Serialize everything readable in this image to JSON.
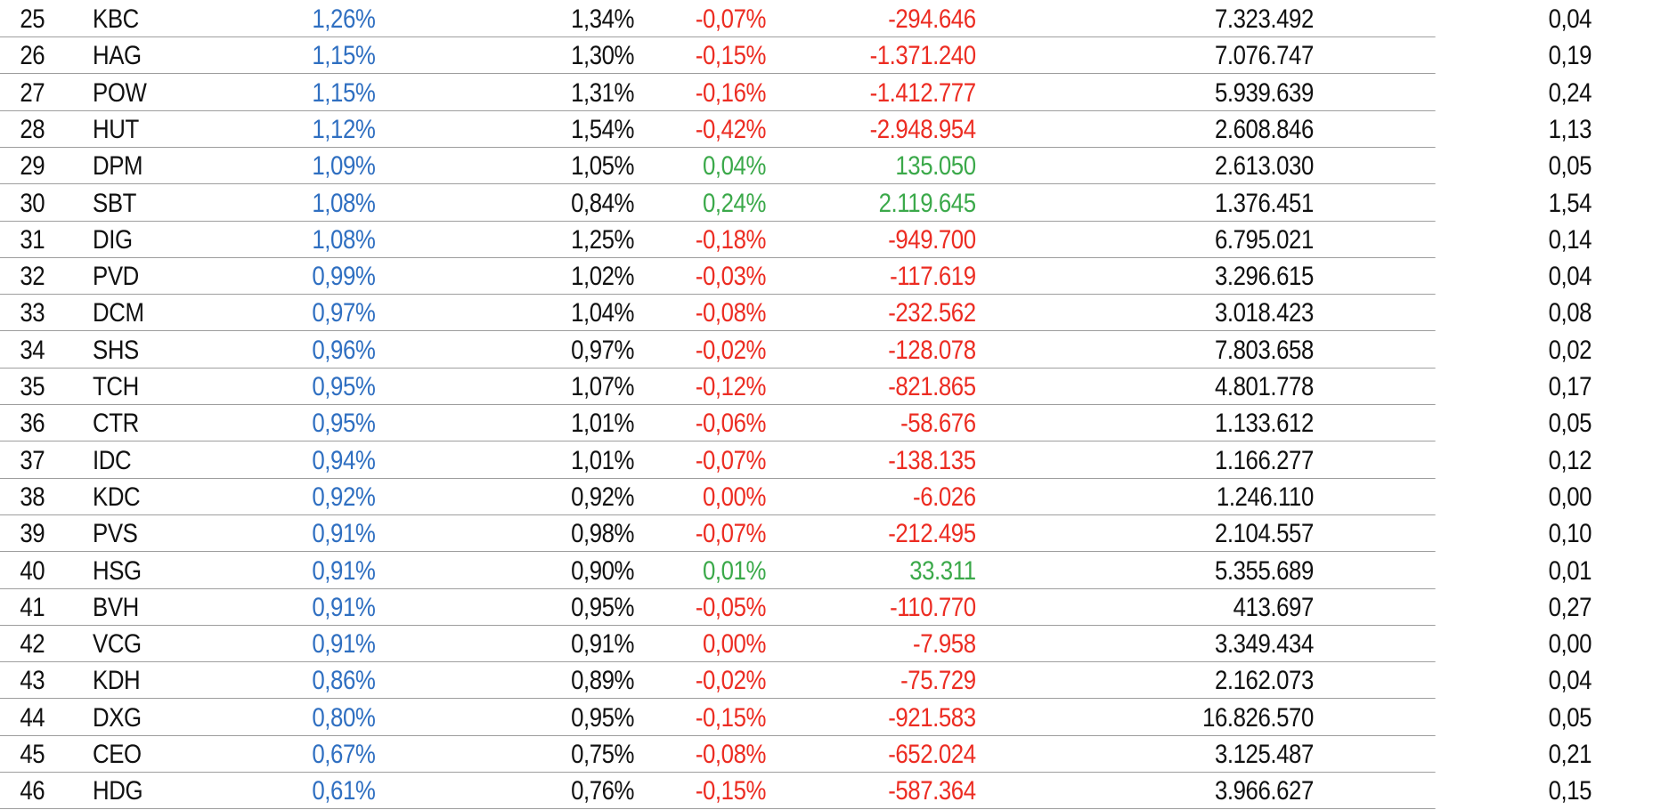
{
  "colors": {
    "weight_blue": "#2f6fc1",
    "negative_red": "#ec2c22",
    "positive_green": "#3ba94a",
    "text": "#111111",
    "divider": "#9e9e9e"
  },
  "rows": [
    {
      "no": "25",
      "code": "KBC",
      "w1": "1,26%",
      "w2": "1,34%",
      "diff": "-0,07%",
      "value": "-294.646",
      "volume": "7.323.492",
      "ratio": "0,04",
      "tone": "red"
    },
    {
      "no": "26",
      "code": "HAG",
      "w1": "1,15%",
      "w2": "1,30%",
      "diff": "-0,15%",
      "value": "-1.371.240",
      "volume": "7.076.747",
      "ratio": "0,19",
      "tone": "red"
    },
    {
      "no": "27",
      "code": "POW",
      "w1": "1,15%",
      "w2": "1,31%",
      "diff": "-0,16%",
      "value": "-1.412.777",
      "volume": "5.939.639",
      "ratio": "0,24",
      "tone": "red"
    },
    {
      "no": "28",
      "code": "HUT",
      "w1": "1,12%",
      "w2": "1,54%",
      "diff": "-0,42%",
      "value": "-2.948.954",
      "volume": "2.608.846",
      "ratio": "1,13",
      "tone": "red"
    },
    {
      "no": "29",
      "code": "DPM",
      "w1": "1,09%",
      "w2": "1,05%",
      "diff": "0,04%",
      "value": "135.050",
      "volume": "2.613.030",
      "ratio": "0,05",
      "tone": "green"
    },
    {
      "no": "30",
      "code": "SBT",
      "w1": "1,08%",
      "w2": "0,84%",
      "diff": "0,24%",
      "value": "2.119.645",
      "volume": "1.376.451",
      "ratio": "1,54",
      "tone": "green"
    },
    {
      "no": "31",
      "code": "DIG",
      "w1": "1,08%",
      "w2": "1,25%",
      "diff": "-0,18%",
      "value": "-949.700",
      "volume": "6.795.021",
      "ratio": "0,14",
      "tone": "red"
    },
    {
      "no": "32",
      "code": "PVD",
      "w1": "0,99%",
      "w2": "1,02%",
      "diff": "-0,03%",
      "value": "-117.619",
      "volume": "3.296.615",
      "ratio": "0,04",
      "tone": "red"
    },
    {
      "no": "33",
      "code": "DCM",
      "w1": "0,97%",
      "w2": "1,04%",
      "diff": "-0,08%",
      "value": "-232.562",
      "volume": "3.018.423",
      "ratio": "0,08",
      "tone": "red"
    },
    {
      "no": "34",
      "code": "SHS",
      "w1": "0,96%",
      "w2": "0,97%",
      "diff": "-0,02%",
      "value": "-128.078",
      "volume": "7.803.658",
      "ratio": "0,02",
      "tone": "red"
    },
    {
      "no": "35",
      "code": "TCH",
      "w1": "0,95%",
      "w2": "1,07%",
      "diff": "-0,12%",
      "value": "-821.865",
      "volume": "4.801.778",
      "ratio": "0,17",
      "tone": "red"
    },
    {
      "no": "36",
      "code": "CTR",
      "w1": "0,95%",
      "w2": "1,01%",
      "diff": "-0,06%",
      "value": "-58.676",
      "volume": "1.133.612",
      "ratio": "0,05",
      "tone": "red"
    },
    {
      "no": "37",
      "code": "IDC",
      "w1": "0,94%",
      "w2": "1,01%",
      "diff": "-0,07%",
      "value": "-138.135",
      "volume": "1.166.277",
      "ratio": "0,12",
      "tone": "red"
    },
    {
      "no": "38",
      "code": "KDC",
      "w1": "0,92%",
      "w2": "0,92%",
      "diff": "0,00%",
      "value": "-6.026",
      "volume": "1.246.110",
      "ratio": "0,00",
      "tone": "red"
    },
    {
      "no": "39",
      "code": "PVS",
      "w1": "0,91%",
      "w2": "0,98%",
      "diff": "-0,07%",
      "value": "-212.495",
      "volume": "2.104.557",
      "ratio": "0,10",
      "tone": "red"
    },
    {
      "no": "40",
      "code": "HSG",
      "w1": "0,91%",
      "w2": "0,90%",
      "diff": "0,01%",
      "value": "33.311",
      "volume": "5.355.689",
      "ratio": "0,01",
      "tone": "green"
    },
    {
      "no": "41",
      "code": "BVH",
      "w1": "0,91%",
      "w2": "0,95%",
      "diff": "-0,05%",
      "value": "-110.770",
      "volume": "413.697",
      "ratio": "0,27",
      "tone": "red"
    },
    {
      "no": "42",
      "code": "VCG",
      "w1": "0,91%",
      "w2": "0,91%",
      "diff": "0,00%",
      "value": "-7.958",
      "volume": "3.349.434",
      "ratio": "0,00",
      "tone": "red"
    },
    {
      "no": "43",
      "code": "KDH",
      "w1": "0,86%",
      "w2": "0,89%",
      "diff": "-0,02%",
      "value": "-75.729",
      "volume": "2.162.073",
      "ratio": "0,04",
      "tone": "red"
    },
    {
      "no": "44",
      "code": "DXG",
      "w1": "0,80%",
      "w2": "0,95%",
      "diff": "-0,15%",
      "value": "-921.583",
      "volume": "16.826.570",
      "ratio": "0,05",
      "tone": "red"
    },
    {
      "no": "45",
      "code": "CEO",
      "w1": "0,67%",
      "w2": "0,75%",
      "diff": "-0,08%",
      "value": "-652.024",
      "volume": "3.125.487",
      "ratio": "0,21",
      "tone": "red"
    },
    {
      "no": "46",
      "code": "HDG",
      "w1": "0,61%",
      "w2": "0,76%",
      "diff": "-0,15%",
      "value": "-587.364",
      "volume": "3.966.627",
      "ratio": "0,15",
      "tone": "red"
    }
  ]
}
